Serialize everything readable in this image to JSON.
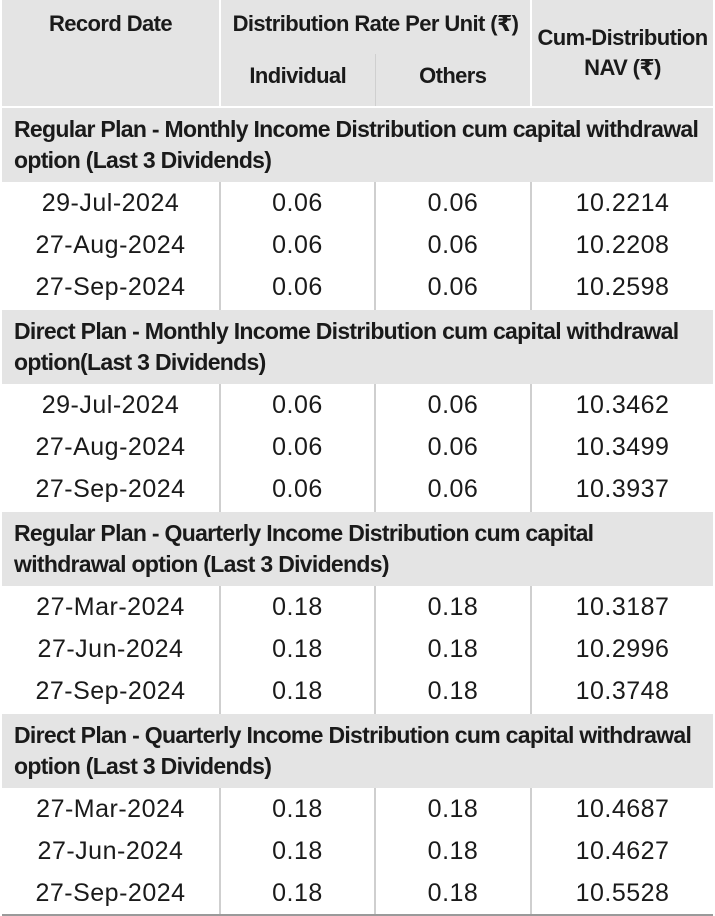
{
  "header": {
    "record_date": "Record Date",
    "distribution_rate": "Distribution Rate Per Unit  (₹)",
    "individual": "Individual",
    "others": "Others",
    "cum_nav_line1": "Cum-Distribution",
    "cum_nav_line2": "NAV (₹)"
  },
  "sections": [
    {
      "title": "Regular Plan - Monthly Income Distribution cum capital withdrawal option (Last 3 Dividends)",
      "rows": [
        {
          "date": "29-Jul-2024",
          "individual": "0.06",
          "others": "0.06",
          "nav": "10.2214"
        },
        {
          "date": "27-Aug-2024",
          "individual": "0.06",
          "others": "0.06",
          "nav": "10.2208"
        },
        {
          "date": "27-Sep-2024",
          "individual": "0.06",
          "others": "0.06",
          "nav": "10.2598"
        }
      ]
    },
    {
      "title": "Direct Plan - Monthly Income Distribution cum capital withdrawal option(Last 3 Dividends)",
      "rows": [
        {
          "date": "29-Jul-2024",
          "individual": "0.06",
          "others": "0.06",
          "nav": "10.3462"
        },
        {
          "date": "27-Aug-2024",
          "individual": "0.06",
          "others": "0.06",
          "nav": "10.3499"
        },
        {
          "date": "27-Sep-2024",
          "individual": "0.06",
          "others": "0.06",
          "nav": "10.3937"
        }
      ]
    },
    {
      "title": "Regular Plan - Quarterly Income Distribution cum capital withdrawal option (Last 3 Dividends)",
      "rows": [
        {
          "date": "27-Mar-2024",
          "individual": "0.18",
          "others": "0.18",
          "nav": "10.3187"
        },
        {
          "date": "27-Jun-2024",
          "individual": "0.18",
          "others": "0.18",
          "nav": "10.2996"
        },
        {
          "date": "27-Sep-2024",
          "individual": "0.18",
          "others": "0.18",
          "nav": "10.3748"
        }
      ]
    },
    {
      "title": "Direct Plan - Quarterly Income Distribution cum capital withdrawal option (Last 3 Dividends)",
      "rows": [
        {
          "date": "27-Mar-2024",
          "individual": "0.18",
          "others": "0.18",
          "nav": "10.4687"
        },
        {
          "date": "27-Jun-2024",
          "individual": "0.18",
          "others": "0.18",
          "nav": "10.4627"
        },
        {
          "date": "27-Sep-2024",
          "individual": "0.18",
          "others": "0.18",
          "nav": "10.5528"
        }
      ]
    }
  ]
}
